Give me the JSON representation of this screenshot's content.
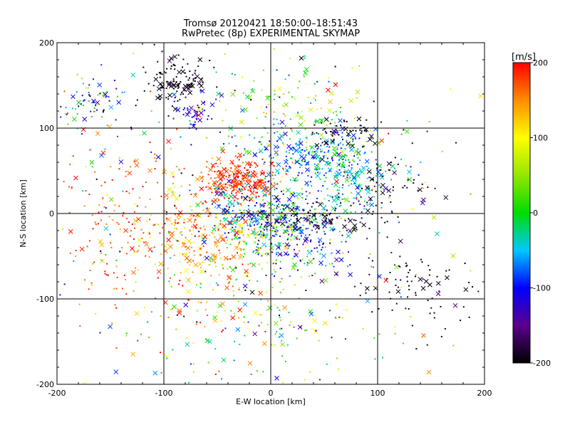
{
  "chart_data": {
    "type": "scatter",
    "title": "Tromsø 20120421 18:50:00–18:51:43",
    "subtitle": "RwPretec (8p) EXPERIMENTAL SKYMAP",
    "xlabel": "E-W location [km]",
    "ylabel": "N-S location [km]",
    "xlim": [
      -200,
      200
    ],
    "ylim": [
      -200,
      200
    ],
    "xticks": [
      -200,
      -100,
      0,
      100,
      200
    ],
    "yticks": [
      -200,
      -100,
      0,
      100,
      200
    ],
    "grid": true,
    "markers": [
      "x",
      "dot"
    ],
    "colorbar": {
      "label": "[m/s]",
      "min": -200,
      "max": 200,
      "ticks": [
        200,
        100,
        0,
        -100,
        -200
      ],
      "colormap": "rainbow (black-purple-blue-cyan-green-yellow-red)"
    },
    "clusters": [
      {
        "x": -85,
        "y": 155,
        "sx": 14,
        "sy": 14,
        "v": -200,
        "vs": 15,
        "n": 120
      },
      {
        "x": -75,
        "y": 120,
        "sx": 10,
        "sy": 10,
        "v": -110,
        "vs": 20,
        "n": 45
      },
      {
        "x": -165,
        "y": 130,
        "sx": 18,
        "sy": 15,
        "v": -70,
        "vs": 80,
        "n": 70
      },
      {
        "x": -30,
        "y": 40,
        "sx": 18,
        "sy": 12,
        "v": 185,
        "vs": 15,
        "n": 260
      },
      {
        "x": 40,
        "y": 70,
        "sx": 30,
        "sy": 15,
        "v": -60,
        "vs": 40,
        "n": 220
      },
      {
        "x": 70,
        "y": 40,
        "sx": 25,
        "sy": 20,
        "v": -40,
        "vs": 40,
        "n": 160
      },
      {
        "x": 75,
        "y": 95,
        "sx": 15,
        "sy": 8,
        "v": -200,
        "vs": 10,
        "n": 50
      },
      {
        "x": 110,
        "y": 30,
        "sx": 20,
        "sy": 15,
        "v": -190,
        "vs": 15,
        "n": 45
      },
      {
        "x": 0,
        "y": -20,
        "sx": 25,
        "sy": 25,
        "v": 10,
        "vs": 40,
        "n": 220
      },
      {
        "x": -60,
        "y": -30,
        "sx": 35,
        "sy": 25,
        "v": 140,
        "vs": 35,
        "n": 240
      },
      {
        "x": 30,
        "y": -5,
        "sx": 40,
        "sy": 10,
        "v": -200,
        "vs": 20,
        "n": 130
      },
      {
        "x": 30,
        "y": -30,
        "sx": 25,
        "sy": 25,
        "v": -110,
        "vs": 30,
        "n": 120
      },
      {
        "x": -10,
        "y": 5,
        "sx": 30,
        "sy": 15,
        "v": -80,
        "vs": 40,
        "n": 130
      },
      {
        "x": 130,
        "y": -90,
        "sx": 30,
        "sy": 25,
        "v": -190,
        "vs": 15,
        "n": 80
      },
      {
        "x": -130,
        "y": -10,
        "sx": 45,
        "sy": 60,
        "v": 175,
        "vs": 25,
        "n": 200
      },
      {
        "x": 20,
        "y": 120,
        "sx": 30,
        "sy": 25,
        "v": 40,
        "vs": 60,
        "n": 120
      },
      {
        "x": -20,
        "y": -130,
        "sx": 60,
        "sy": 40,
        "v": 50,
        "vs": 90,
        "n": 160
      },
      {
        "x": 0,
        "y": 0,
        "sx": 110,
        "sy": 110,
        "v": 0,
        "vs": 130,
        "n": 360
      }
    ]
  }
}
